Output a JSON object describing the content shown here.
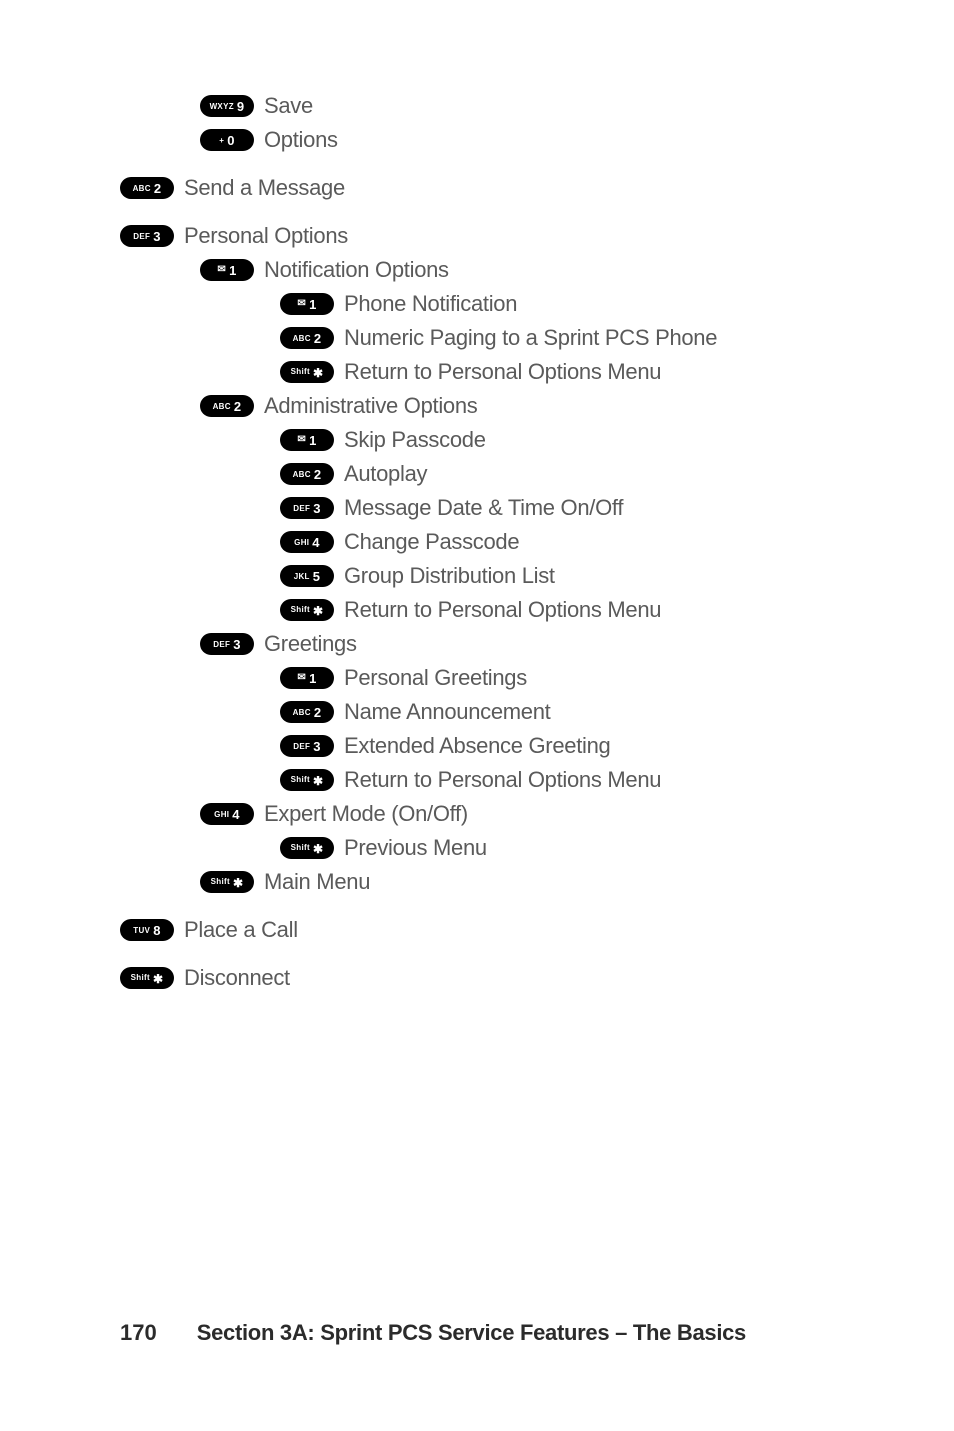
{
  "footer": {
    "page": "170",
    "title": "Section 3A: Sprint PCS Service Features – The Basics"
  },
  "tree": [
    {
      "level": 1,
      "keyLetters": "WXYZ",
      "keyDigit": "9",
      "label": "Save"
    },
    {
      "level": 1,
      "keyLetters": "+",
      "keyDigit": "0",
      "label": "Options"
    },
    {
      "gap": true
    },
    {
      "level": 0,
      "keyLetters": "ABC",
      "keyDigit": "2",
      "label": "Send a Message"
    },
    {
      "gap": true
    },
    {
      "level": 0,
      "keyLetters": "DEF",
      "keyDigit": "3",
      "label": "Personal Options"
    },
    {
      "level": 1,
      "keyIcon": "envelope",
      "keyDigit": "1",
      "label": "Notification Options"
    },
    {
      "level": 2,
      "keyIcon": "envelope",
      "keyDigit": "1",
      "label": "Phone Notification"
    },
    {
      "level": 2,
      "keyLetters": "ABC",
      "keyDigit": "2",
      "label": "Numeric Paging to a Sprint PCS Phone"
    },
    {
      "level": 2,
      "keyShift": true,
      "label": "Return to Personal Options Menu"
    },
    {
      "level": 1,
      "keyLetters": "ABC",
      "keyDigit": "2",
      "label": "Administrative Options"
    },
    {
      "level": 2,
      "keyIcon": "envelope",
      "keyDigit": "1",
      "label": "Skip Passcode"
    },
    {
      "level": 2,
      "keyLetters": "ABC",
      "keyDigit": "2",
      "label": "Autoplay"
    },
    {
      "level": 2,
      "keyLetters": "DEF",
      "keyDigit": "3",
      "label": "Message Date & Time On/Off"
    },
    {
      "level": 2,
      "keyLetters": "GHI",
      "keyDigit": "4",
      "label": "Change Passcode"
    },
    {
      "level": 2,
      "keyLetters": "JKL",
      "keyDigit": "5",
      "label": "Group Distribution List"
    },
    {
      "level": 2,
      "keyShift": true,
      "label": "Return to Personal Options Menu"
    },
    {
      "level": 1,
      "keyLetters": "DEF",
      "keyDigit": "3",
      "label": "Greetings"
    },
    {
      "level": 2,
      "keyIcon": "envelope",
      "keyDigit": "1",
      "label": "Personal Greetings"
    },
    {
      "level": 2,
      "keyLetters": "ABC",
      "keyDigit": "2",
      "label": "Name Announcement"
    },
    {
      "level": 2,
      "keyLetters": "DEF",
      "keyDigit": "3",
      "label": "Extended Absence Greeting"
    },
    {
      "level": 2,
      "keyShift": true,
      "label": "Return to Personal Options Menu"
    },
    {
      "level": 1,
      "keyLetters": "GHI",
      "keyDigit": "4",
      "label": "Expert Mode (On/Off)"
    },
    {
      "level": 2,
      "keyShift": true,
      "label": "Previous Menu"
    },
    {
      "level": 1,
      "keyShift": true,
      "label": "Main Menu"
    },
    {
      "gap": true
    },
    {
      "level": 0,
      "keyLetters": "TUV",
      "keyDigit": "8",
      "label": "Place a Call"
    },
    {
      "gap": true
    },
    {
      "level": 0,
      "keyShift": true,
      "label": "Disconnect"
    }
  ]
}
